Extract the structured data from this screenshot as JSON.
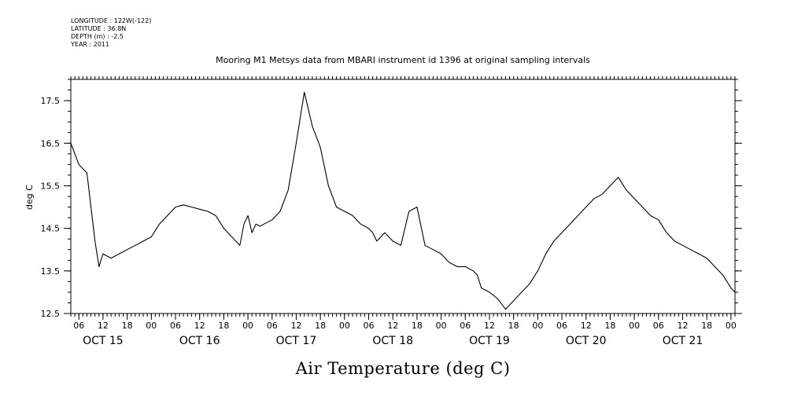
{
  "header": {
    "lines": [
      "LONGITUDE : 122W(-122)",
      "LATITUDE : 36.8N",
      "DEPTH (m) : -2.5",
      "YEAR : 2011"
    ]
  },
  "chart_data": {
    "type": "line",
    "title": "Mooring M1 Metsys data from MBARI instrument id 1396 at original sampling intervals",
    "xlabel": "Air Temperature (deg C)",
    "ylabel": "deg C",
    "ylim": [
      12.5,
      18.0
    ],
    "yticks": [
      12.5,
      13.5,
      14.5,
      15.5,
      16.5,
      17.5
    ],
    "ytick_labels": [
      "12.5",
      "13.5",
      "14.5",
      "15.5",
      "16.5",
      "17.5"
    ],
    "xlim": [
      "2011-10-15T04:00",
      "2011-10-22T01:00"
    ],
    "xticks_hours": [
      "06",
      "12",
      "18",
      "00",
      "06",
      "12",
      "18",
      "00",
      "06",
      "12",
      "18",
      "00",
      "06",
      "12",
      "18",
      "00",
      "06",
      "12",
      "18",
      "00",
      "06",
      "12",
      "18",
      "00",
      "06",
      "12",
      "18",
      "00"
    ],
    "x_day_labels": [
      "OCT 15",
      "OCT 16",
      "OCT 17",
      "OCT 18",
      "OCT 19",
      "OCT 20",
      "OCT 21"
    ],
    "grid": false,
    "series": [
      {
        "values_x_hours_since_2011-10-15T00:00": [
          4,
          6,
          8,
          9,
          10,
          11,
          12,
          14,
          16,
          18,
          20,
          22,
          24,
          26,
          28,
          30,
          32,
          34,
          36,
          38,
          40,
          42,
          44,
          46,
          47,
          48,
          49,
          50,
          51,
          52,
          54,
          56,
          58,
          60,
          62,
          64,
          66,
          68,
          70,
          72,
          74,
          76,
          78,
          79,
          80,
          82,
          84,
          86,
          88,
          90,
          92,
          94,
          96,
          98,
          100,
          102,
          104,
          105,
          106,
          108,
          110,
          112,
          114,
          116,
          118,
          120,
          122,
          124,
          126,
          128,
          130,
          132,
          134,
          136,
          138,
          140,
          142,
          144,
          146,
          148,
          150,
          152,
          154,
          156,
          158,
          160,
          162,
          164,
          166,
          168,
          169
        ],
        "values_x": [
          "2011-10-15T04:00",
          "2011-10-15T06:00",
          "2011-10-15T08:00",
          "2011-10-15T09:00",
          "2011-10-15T10:00",
          "2011-10-15T11:00",
          "2011-10-15T12:00",
          "2011-10-15T14:00",
          "2011-10-15T16:00",
          "2011-10-15T18:00",
          "2011-10-15T20:00",
          "2011-10-15T22:00",
          "2011-10-16T00:00",
          "2011-10-16T02:00",
          "2011-10-16T04:00",
          "2011-10-16T06:00",
          "2011-10-16T08:00",
          "2011-10-16T10:00",
          "2011-10-16T12:00",
          "2011-10-16T14:00",
          "2011-10-16T16:00",
          "2011-10-16T18:00",
          "2011-10-16T20:00",
          "2011-10-16T22:00",
          "2011-10-16T23:00",
          "2011-10-17T00:00",
          "2011-10-17T01:00",
          "2011-10-17T02:00",
          "2011-10-17T03:00",
          "2011-10-17T04:00",
          "2011-10-17T06:00",
          "2011-10-17T08:00",
          "2011-10-17T10:00",
          "2011-10-17T12:00",
          "2011-10-17T14:00",
          "2011-10-17T16:00",
          "2011-10-17T18:00",
          "2011-10-17T20:00",
          "2011-10-17T22:00",
          "2011-10-18T00:00",
          "2011-10-18T02:00",
          "2011-10-18T04:00",
          "2011-10-18T06:00",
          "2011-10-18T07:00",
          "2011-10-18T08:00",
          "2011-10-18T10:00",
          "2011-10-18T12:00",
          "2011-10-18T14:00",
          "2011-10-18T16:00",
          "2011-10-18T18:00",
          "2011-10-18T20:00",
          "2011-10-18T22:00",
          "2011-10-19T00:00",
          "2011-10-19T02:00",
          "2011-10-19T04:00",
          "2011-10-19T06:00",
          "2011-10-19T08:00",
          "2011-10-19T09:00",
          "2011-10-19T10:00",
          "2011-10-19T12:00",
          "2011-10-19T14:00",
          "2011-10-19T16:00",
          "2011-10-19T18:00",
          "2011-10-19T20:00",
          "2011-10-19T22:00",
          "2011-10-20T00:00",
          "2011-10-20T02:00",
          "2011-10-20T04:00",
          "2011-10-20T06:00",
          "2011-10-20T08:00",
          "2011-10-20T10:00",
          "2011-10-20T12:00",
          "2011-10-20T14:00",
          "2011-10-20T16:00",
          "2011-10-20T18:00",
          "2011-10-20T20:00",
          "2011-10-20T22:00",
          "2011-10-21T00:00",
          "2011-10-21T02:00",
          "2011-10-21T04:00",
          "2011-10-21T06:00",
          "2011-10-21T08:00",
          "2011-10-21T10:00",
          "2011-10-21T12:00",
          "2011-10-21T14:00",
          "2011-10-21T16:00",
          "2011-10-21T18:00",
          "2011-10-21T20:00",
          "2011-10-21T22:00",
          "2011-10-22T00:00",
          "2011-10-22T01:00"
        ],
        "values": [
          16.5,
          16.0,
          15.8,
          15.0,
          14.2,
          13.6,
          13.9,
          13.8,
          13.9,
          14.0,
          14.1,
          14.2,
          14.3,
          14.6,
          14.8,
          15.0,
          15.05,
          15.0,
          14.95,
          14.9,
          14.8,
          14.5,
          14.3,
          14.1,
          14.6,
          14.8,
          14.4,
          14.6,
          14.55,
          14.6,
          14.7,
          14.9,
          15.4,
          16.5,
          17.7,
          16.9,
          16.4,
          15.5,
          15.0,
          14.9,
          14.8,
          14.6,
          14.5,
          14.4,
          14.2,
          14.4,
          14.2,
          14.1,
          14.9,
          15.0,
          14.1,
          14.0,
          13.9,
          13.7,
          13.6,
          13.6,
          13.5,
          13.4,
          13.1,
          13.0,
          12.85,
          12.6,
          12.8,
          13.0,
          13.2,
          13.5,
          13.9,
          14.2,
          14.4,
          14.6,
          14.8,
          15.0,
          15.2,
          15.3,
          15.5,
          15.7,
          15.4,
          15.2,
          15.0,
          14.8,
          14.7,
          14.4,
          14.2,
          14.1,
          14.0,
          13.9,
          13.8,
          13.6,
          13.4,
          13.1,
          13.0
        ]
      }
    ]
  }
}
